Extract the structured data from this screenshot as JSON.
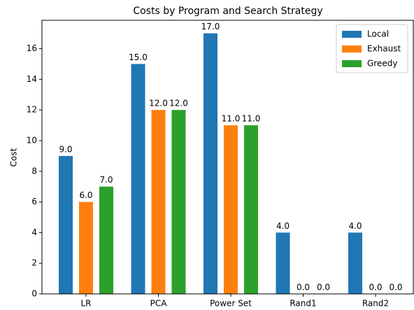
{
  "chart_data": {
    "type": "bar",
    "title": "Costs by Program and Search Strategy",
    "ylabel": "Cost",
    "categories": [
      "LR",
      "PCA",
      "Power Set",
      "Rand1",
      "Rand2"
    ],
    "series": [
      {
        "name": "Local",
        "color": "#1f77b4",
        "values": [
          9,
          15,
          17,
          4,
          4
        ],
        "value_labels": [
          "9.0",
          "15.0",
          "17.0",
          "4.0",
          "4.0"
        ]
      },
      {
        "name": "Exhaust",
        "color": "#ff7f0e",
        "values": [
          6,
          12,
          11,
          0,
          0
        ],
        "value_labels": [
          "6.0",
          "12.0",
          "11.0",
          "0.0",
          "0.0"
        ]
      },
      {
        "name": "Greedy",
        "color": "#2ca02c",
        "values": [
          7,
          12,
          11,
          0,
          0
        ],
        "value_labels": [
          "7.0",
          "12.0",
          "11.0",
          "0.0",
          "0.0"
        ]
      }
    ],
    "ylim": [
      0,
      17.85
    ],
    "yticks": [
      0,
      2,
      4,
      6,
      8,
      10,
      12,
      14,
      16
    ],
    "legend": "upper right"
  }
}
